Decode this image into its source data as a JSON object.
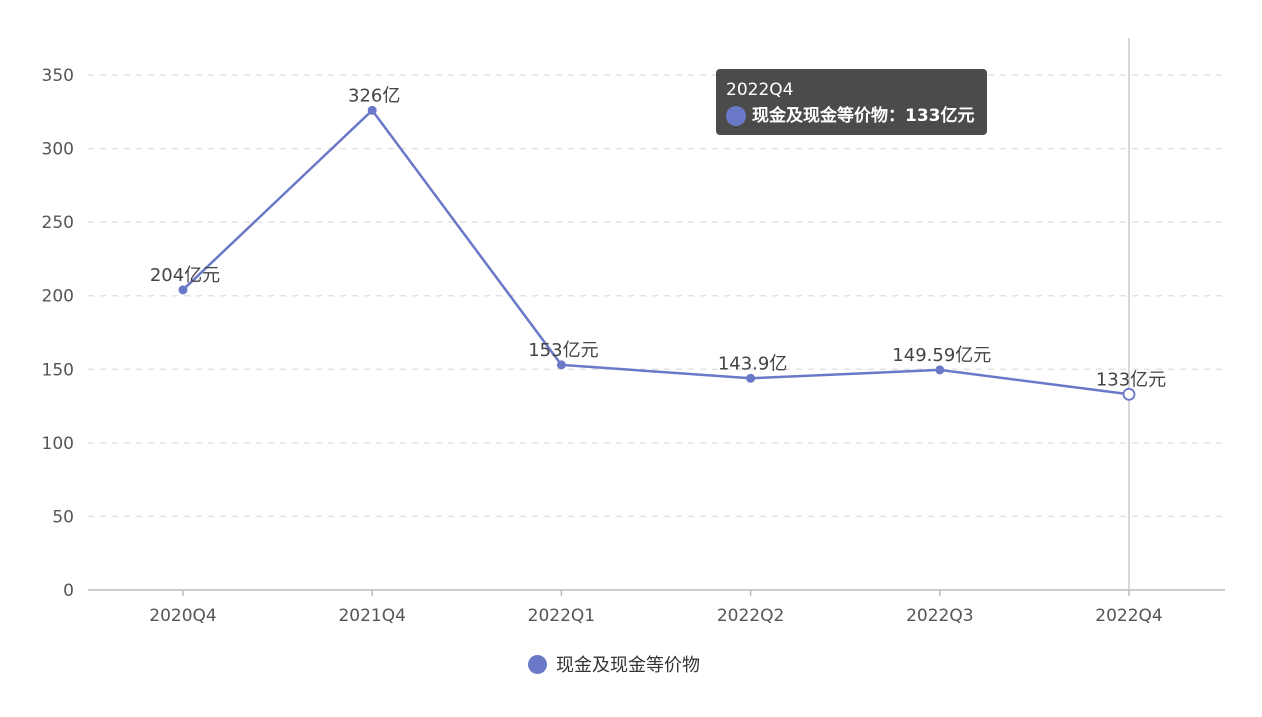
{
  "chart_data": {
    "type": "line",
    "title": "",
    "xlabel": "",
    "ylabel": "",
    "categories": [
      "2020Q4",
      "2021Q4",
      "2022Q1",
      "2022Q2",
      "2022Q3",
      "2022Q4"
    ],
    "ylim": [
      0,
      350
    ],
    "yticks": [
      "0",
      "50",
      "100",
      "150",
      "200",
      "250",
      "300",
      "350"
    ],
    "series": [
      {
        "name": "现金及现金等价物",
        "values": [
          204,
          326,
          153,
          143.9,
          149.59,
          133
        ],
        "data_labels": [
          "204亿元",
          "326亿",
          "153亿元",
          "143.9亿",
          "149.59亿元",
          "133亿元"
        ]
      }
    ],
    "grid": "horizontal dashed",
    "legend_position": "bottom-center",
    "series_color": "#6a78c8",
    "highlighted_index": 5
  },
  "tooltip": {
    "title": "2022Q4",
    "series_name": "现金及现金等价物",
    "separator": "：",
    "value": "133亿元"
  },
  "legend": {
    "label": "现金及现金等价物",
    "icon": "circle-icon"
  }
}
